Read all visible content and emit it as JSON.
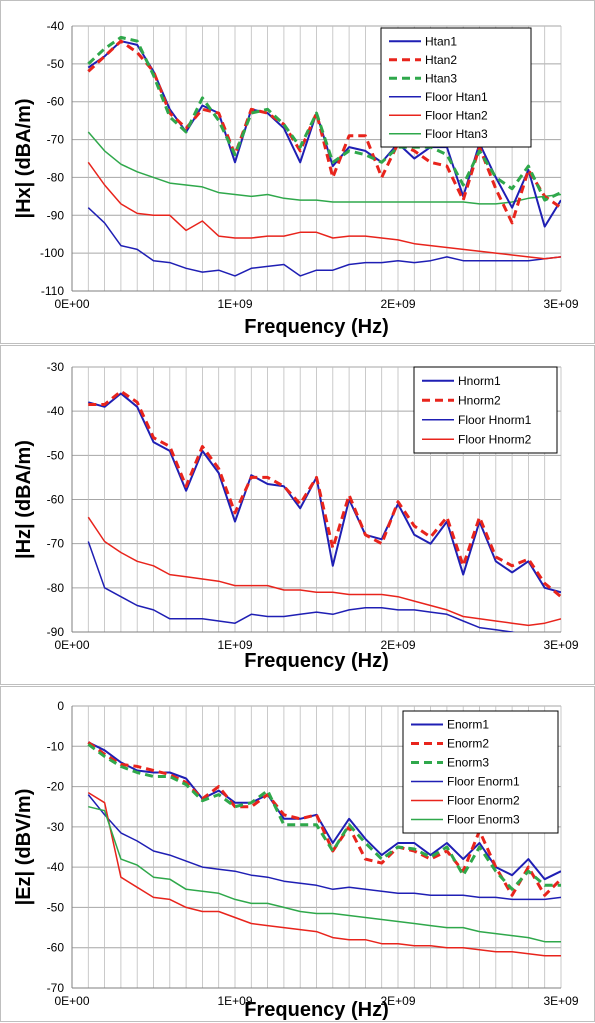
{
  "chart_data": [
    {
      "type": "line",
      "xlabel": "Frequency (Hz)",
      "ylabel": "|Hx| (dBA/m)",
      "xlim": [
        0,
        3000000000
      ],
      "ylim": [
        -110,
        -40
      ],
      "xticks": [
        0,
        1000000000,
        2000000000,
        3000000000
      ],
      "xtick_labels": [
        "0E+00",
        "1E+09",
        "2E+09",
        "3E+09"
      ],
      "yticks": [
        -110,
        -100,
        -90,
        -80,
        -70,
        -60,
        -50,
        -40
      ],
      "grid": true,
      "legend_position": "top-right",
      "x": [
        100000000,
        200000000,
        300000000,
        400000000,
        500000000,
        600000000,
        700000000,
        800000000,
        900000000,
        1000000000,
        1100000000,
        1200000000,
        1300000000,
        1400000000,
        1500000000,
        1600000000,
        1700000000,
        1800000000,
        1900000000,
        2000000000,
        2100000000,
        2200000000,
        2300000000,
        2400000000,
        2500000000,
        2600000000,
        2700000000,
        2800000000,
        2900000000,
        3000000000
      ],
      "series": [
        {
          "name": "Htan1",
          "color": "#1f1fb4",
          "dash": "solid",
          "width": 2,
          "values": [
            -51,
            -48,
            -44,
            -45,
            -52,
            -62,
            -68,
            -61,
            -63,
            -76,
            -62,
            -63,
            -67,
            -76,
            -63,
            -77,
            -72,
            -73,
            -76,
            -71,
            -75,
            -72,
            -72,
            -85,
            -71,
            -80,
            -88,
            -78,
            -93,
            -86
          ]
        },
        {
          "name": "Htan2",
          "color": "#e8241c",
          "dash": "8,5",
          "width": 3,
          "values": [
            -52,
            -48,
            -44,
            -47,
            -52,
            -63,
            -67,
            -62,
            -63,
            -74,
            -62,
            -63,
            -66,
            -73,
            -63,
            -80,
            -69,
            -69,
            -80,
            -71,
            -73,
            -76,
            -77,
            -86,
            -72,
            -83,
            -92,
            -78,
            -85,
            -88
          ]
        },
        {
          "name": "Htan3",
          "color": "#2fa84b",
          "dash": "8,5",
          "width": 3,
          "values": [
            -50,
            -46,
            -43,
            -44,
            -53,
            -64,
            -68,
            -59,
            -65,
            -74,
            -63,
            -62,
            -66,
            -72,
            -63,
            -76,
            -73,
            -74,
            -76,
            -72,
            -72,
            -72,
            -74,
            -82,
            -73,
            -80,
            -83,
            -77,
            -86,
            -84
          ]
        },
        {
          "name": "Floor Htan1",
          "color": "#1f1fb4",
          "dash": "solid",
          "width": 1.5,
          "values": [
            -88,
            -92,
            -98,
            -99,
            -102,
            -102.5,
            -104,
            -105,
            -104.5,
            -106,
            -104,
            -103.5,
            -103,
            -106,
            -104.5,
            -104.5,
            -103,
            -102.5,
            -102.5,
            -102,
            -102.5,
            -102,
            -101,
            -102,
            -102,
            -102,
            -102,
            -102,
            -101.5,
            -101
          ]
        },
        {
          "name": "Floor Htan2",
          "color": "#e8241c",
          "dash": "solid",
          "width": 1.5,
          "values": [
            -76,
            -82,
            -87,
            -89.5,
            -90,
            -90,
            -94,
            -91.5,
            -95.5,
            -96,
            -96,
            -95.5,
            -95.5,
            -94.5,
            -94.5,
            -96,
            -95.5,
            -95.5,
            -96,
            -96.5,
            -97.5,
            -98,
            -98.5,
            -99,
            -99.5,
            -100,
            -100.5,
            -101,
            -101.5,
            -101
          ]
        },
        {
          "name": "Floor Htan3",
          "color": "#2fa84b",
          "dash": "solid",
          "width": 1.5,
          "values": [
            -68,
            -73,
            -76.5,
            -78.5,
            -80,
            -81.5,
            -82,
            -82.5,
            -84,
            -84.5,
            -85,
            -84.5,
            -85.5,
            -86,
            -86,
            -86.5,
            -86.5,
            -86.5,
            -86.5,
            -86.5,
            -86.5,
            -86.5,
            -86.5,
            -86.5,
            -87,
            -87,
            -86.5,
            -85.5,
            -85,
            -84.5
          ]
        }
      ]
    },
    {
      "type": "line",
      "xlabel": "Frequency (Hz)",
      "ylabel": "|Hz| (dBA/m)",
      "xlim": [
        0,
        3000000000
      ],
      "ylim": [
        -90,
        -30
      ],
      "xticks": [
        0,
        1000000000,
        2000000000,
        3000000000
      ],
      "xtick_labels": [
        "0E+00",
        "1E+09",
        "2E+09",
        "3E+09"
      ],
      "yticks": [
        -90,
        -80,
        -70,
        -60,
        -50,
        -40,
        -30
      ],
      "grid": true,
      "legend_position": "top-right",
      "x": [
        100000000,
        200000000,
        300000000,
        400000000,
        500000000,
        600000000,
        700000000,
        800000000,
        900000000,
        1000000000,
        1100000000,
        1200000000,
        1300000000,
        1400000000,
        1500000000,
        1600000000,
        1700000000,
        1800000000,
        1900000000,
        2000000000,
        2100000000,
        2200000000,
        2300000000,
        2400000000,
        2500000000,
        2600000000,
        2700000000,
        2800000000,
        2900000000,
        3000000000
      ],
      "series": [
        {
          "name": "Hnorm1",
          "color": "#1f1fb4",
          "dash": "solid",
          "width": 2,
          "values": [
            -38,
            -39,
            -36,
            -39,
            -47,
            -49,
            -58,
            -49,
            -54,
            -65,
            -54.5,
            -56.5,
            -57,
            -62,
            -55,
            -75,
            -60,
            -68,
            -69,
            -61,
            -68,
            -70,
            -65,
            -77,
            -65,
            -74,
            -76.5,
            -74,
            -80,
            -81
          ]
        },
        {
          "name": "Hnorm2",
          "color": "#e8241c",
          "dash": "8,5",
          "width": 3,
          "values": [
            -38.5,
            -38.5,
            -35.5,
            -38,
            -46,
            -48,
            -57,
            -48,
            -53,
            -63,
            -55,
            -55,
            -57,
            -61,
            -55,
            -71,
            -59,
            -68,
            -70,
            -60.5,
            -66,
            -68.5,
            -64,
            -75,
            -64,
            -73,
            -75,
            -73.5,
            -79,
            -82
          ]
        },
        {
          "name": "Floor Hnorm1",
          "color": "#1f1fb4",
          "dash": "solid",
          "width": 1.5,
          "values": [
            -69.5,
            -80,
            -82,
            -84,
            -85,
            -87,
            -87,
            -87,
            -87.5,
            -88,
            -86,
            -86.5,
            -86.5,
            -86,
            -85.5,
            -86,
            -85,
            -84.5,
            -84.5,
            -85,
            -85,
            -85.5,
            -86,
            -87.5,
            -89,
            -89.5,
            -90,
            -91,
            -91,
            -91
          ]
        },
        {
          "name": "Floor Hnorm2",
          "color": "#e8241c",
          "dash": "solid",
          "width": 1.5,
          "values": [
            -64,
            -69.5,
            -72,
            -74,
            -75,
            -77,
            -77.5,
            -78,
            -78.5,
            -79.5,
            -79.5,
            -79.5,
            -80.5,
            -80.5,
            -81,
            -81,
            -81.5,
            -81.5,
            -81.5,
            -82,
            -83,
            -84,
            -85,
            -86.5,
            -87,
            -87.5,
            -88,
            -88.5,
            -88,
            -87
          ]
        }
      ]
    },
    {
      "type": "line",
      "xlabel": "Frequency (Hz)",
      "ylabel": "|Ez| (dBV/m)",
      "xlim": [
        0,
        3000000000
      ],
      "ylim": [
        -70,
        0
      ],
      "xticks": [
        0,
        1000000000,
        2000000000,
        3000000000
      ],
      "xtick_labels": [
        "0E+00",
        "1E+09",
        "2E+09",
        "3E+09"
      ],
      "yticks": [
        -70,
        -60,
        -50,
        -40,
        -30,
        -20,
        -10,
        0
      ],
      "grid": true,
      "legend_position": "top-right",
      "x": [
        100000000,
        200000000,
        300000000,
        400000000,
        500000000,
        600000000,
        700000000,
        800000000,
        900000000,
        1000000000,
        1100000000,
        1200000000,
        1300000000,
        1400000000,
        1500000000,
        1600000000,
        1700000000,
        1800000000,
        1900000000,
        2000000000,
        2100000000,
        2200000000,
        2300000000,
        2400000000,
        2500000000,
        2600000000,
        2700000000,
        2800000000,
        2900000000,
        3000000000
      ],
      "series": [
        {
          "name": "Enorm1",
          "color": "#1f1fb4",
          "dash": "solid",
          "width": 2,
          "values": [
            -9,
            -11,
            -14,
            -16,
            -16.5,
            -16.5,
            -18,
            -23,
            -21,
            -24,
            -24,
            -22,
            -28,
            -28,
            -27,
            -34,
            -28,
            -33,
            -37,
            -34,
            -34,
            -37,
            -34,
            -38,
            -34,
            -40,
            -42,
            -38,
            -43,
            -41
          ]
        },
        {
          "name": "Enorm2",
          "color": "#e8241c",
          "dash": "8,5",
          "width": 3,
          "values": [
            -9,
            -12,
            -14.5,
            -15,
            -16,
            -17,
            -19,
            -23,
            -20,
            -25,
            -25,
            -22,
            -27,
            -28,
            -27,
            -36,
            -30,
            -38,
            -39,
            -35,
            -36,
            -38,
            -36,
            -41,
            -31,
            -40,
            -47,
            -40,
            -47,
            -43
          ]
        },
        {
          "name": "Enorm3",
          "color": "#2fa84b",
          "dash": "8,5",
          "width": 3,
          "values": [
            -9.5,
            -12.5,
            -15,
            -16.5,
            -17.5,
            -17.5,
            -19.5,
            -23.5,
            -22,
            -25,
            -24,
            -21,
            -29.5,
            -29.5,
            -29.5,
            -36,
            -29.5,
            -34,
            -38,
            -35,
            -35.5,
            -37.5,
            -35,
            -42,
            -35,
            -41,
            -45.5,
            -41,
            -44.5,
            -44.5
          ]
        },
        {
          "name": "Floor Enorm1",
          "color": "#1f1fb4",
          "dash": "solid",
          "width": 1.5,
          "values": [
            -22,
            -27,
            -31.5,
            -33.5,
            -36,
            -37,
            -38.5,
            -40,
            -40.5,
            -41,
            -42,
            -42.5,
            -43.5,
            -44,
            -44.5,
            -45.5,
            -45,
            -45.5,
            -46,
            -46.5,
            -46.5,
            -47,
            -47,
            -47,
            -47.5,
            -47.5,
            -48,
            -48,
            -48,
            -47.5
          ]
        },
        {
          "name": "Floor Enorm2",
          "color": "#e8241c",
          "dash": "solid",
          "width": 1.5,
          "values": [
            -21.5,
            -24,
            -42.5,
            -45,
            -47.5,
            -48,
            -50,
            -51,
            -51,
            -52.5,
            -54,
            -54.5,
            -55,
            -55.5,
            -56,
            -57.5,
            -58,
            -58,
            -59,
            -59,
            -59.5,
            -59.5,
            -60,
            -60,
            -60.5,
            -61,
            -61,
            -61.5,
            -62,
            -62
          ]
        },
        {
          "name": "Floor Enorm3",
          "color": "#2fa84b",
          "dash": "solid",
          "width": 1.5,
          "values": [
            -25,
            -26,
            -38,
            -39.5,
            -42.5,
            -43,
            -45.5,
            -46,
            -46.5,
            -48,
            -49,
            -49,
            -50,
            -51,
            -51.5,
            -51.5,
            -52,
            -52.5,
            -53,
            -53.5,
            -54,
            -54.5,
            -55,
            -55,
            -56,
            -56.5,
            -57,
            -57.5,
            -58.5,
            -58.5
          ]
        }
      ]
    }
  ]
}
